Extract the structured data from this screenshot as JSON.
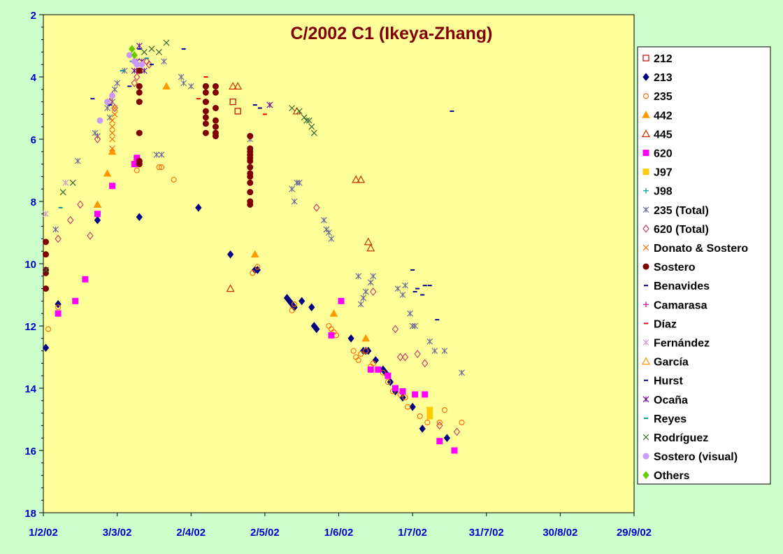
{
  "chart_data": {
    "type": "scatter",
    "title": "C/2002 C1 (Ikeya-Zhang)",
    "xlabel": "",
    "ylabel": "",
    "x_tick_labels": [
      "1/2/02",
      "3/3/02",
      "2/4/02",
      "2/5/02",
      "1/6/02",
      "1/7/02",
      "31/7/02",
      "30/8/02",
      "29/9/02"
    ],
    "x_tick_values": [
      0,
      30,
      60,
      90,
      120,
      150,
      180,
      210,
      240
    ],
    "xlim": [
      0,
      240
    ],
    "ylim": [
      18,
      2
    ],
    "y_inverted": true,
    "y_ticks": [
      2,
      4,
      6,
      8,
      10,
      12,
      14,
      16,
      18
    ],
    "legend_position": "right",
    "grid": false,
    "plot_background": "#ffff99",
    "series": [
      {
        "name": "212",
        "marker": "square-open",
        "color": "#cc0000",
        "x": [
          77,
          79
        ],
        "y": [
          4.8,
          5.1
        ]
      },
      {
        "name": "213",
        "marker": "diamond",
        "color": "#000080",
        "x": [
          1,
          6,
          22,
          39,
          63,
          76,
          86,
          87,
          99,
          100,
          101,
          102,
          105,
          109,
          110,
          111,
          125,
          130,
          131,
          132,
          135,
          138,
          139,
          141,
          143,
          146,
          150,
          154,
          164
        ],
        "y": [
          12.7,
          11.3,
          8.6,
          8.5,
          8.2,
          9.7,
          10.2,
          10.2,
          11.1,
          11.2,
          11.3,
          11.4,
          11.2,
          11.4,
          12.0,
          12.1,
          12.4,
          12.8,
          12.8,
          12.8,
          13.1,
          13.4,
          13.5,
          13.8,
          14.1,
          14.3,
          14.6,
          15.3,
          15.6
        ]
      },
      {
        "name": "235",
        "marker": "circle-open",
        "color": "#ff6600",
        "x": [
          2,
          6,
          38,
          47,
          48,
          53,
          85,
          87,
          101,
          102,
          116,
          117,
          118,
          119,
          126,
          127,
          128,
          129,
          131,
          133,
          134,
          136,
          138,
          140,
          142,
          145,
          147,
          148,
          153,
          156,
          161,
          163,
          170
        ],
        "y": [
          12.1,
          11.4,
          7.0,
          6.9,
          6.9,
          7.3,
          10.3,
          10.1,
          11.5,
          11.3,
          12.0,
          12.1,
          12.2,
          12.3,
          12.8,
          13.0,
          13.1,
          12.9,
          12.8,
          13.3,
          13.2,
          13.4,
          13.5,
          13.8,
          14.1,
          14.2,
          14.3,
          14.6,
          14.9,
          15.1,
          15.1,
          14.7,
          15.1
        ]
      },
      {
        "name": "442",
        "marker": "triangle",
        "color": "#ff9900",
        "x": [
          22,
          26,
          28,
          50,
          86,
          118,
          131
        ],
        "y": [
          8.1,
          7.1,
          6.4,
          4.3,
          9.7,
          11.6,
          12.4
        ]
      },
      {
        "name": "445",
        "marker": "triangle-open",
        "color": "#cc3300",
        "x": [
          76,
          77,
          79,
          103,
          127,
          129,
          132,
          133
        ],
        "y": [
          10.8,
          4.3,
          4.3,
          5.1,
          7.3,
          7.3,
          9.3,
          9.5
        ]
      },
      {
        "name": "620",
        "marker": "square",
        "color": "#ff00ff",
        "x": [
          6,
          13,
          17,
          22,
          28,
          37,
          38,
          117,
          121,
          133,
          136,
          140,
          143,
          146,
          151,
          155,
          161,
          167
        ],
        "y": [
          11.6,
          11.2,
          10.5,
          8.4,
          7.5,
          6.8,
          6.6,
          12.3,
          11.2,
          13.4,
          13.4,
          13.6,
          14.0,
          14.1,
          14.2,
          14.2,
          15.7,
          16.0
        ]
      },
      {
        "name": "J97",
        "marker": "square",
        "color": "#ffcc00",
        "x": [
          157,
          157
        ],
        "y": [
          14.7,
          14.9
        ]
      },
      {
        "name": "J98",
        "marker": "plus",
        "color": "#009999",
        "x": [],
        "y": []
      },
      {
        "name": "235 (Total)",
        "marker": "star",
        "color": "#666699",
        "x": [
          5,
          14,
          21,
          22,
          26,
          27,
          28,
          29,
          30,
          33,
          46,
          48,
          49,
          56,
          57,
          60,
          84,
          101,
          102,
          103,
          104,
          114,
          115,
          116,
          117,
          128,
          129,
          130,
          131,
          133,
          134,
          144,
          146,
          147,
          149,
          150,
          151,
          157,
          159,
          163,
          170
        ],
        "y": [
          8.9,
          6.7,
          5.8,
          5.9,
          5.0,
          5.3,
          4.8,
          4.4,
          4.2,
          3.8,
          6.5,
          6.5,
          3.5,
          4.0,
          4.2,
          4.3,
          6.0,
          7.6,
          8.0,
          7.4,
          7.4,
          8.6,
          8.9,
          9.0,
          9.2,
          10.4,
          11.3,
          11.1,
          10.9,
          10.6,
          10.4,
          10.8,
          11.0,
          10.7,
          11.6,
          12.0,
          12.0,
          12.5,
          12.8,
          12.8,
          13.5
        ]
      },
      {
        "name": "620 (Total)",
        "marker": "diamond-open",
        "color": "#cc3366",
        "x": [
          6,
          11,
          15,
          19,
          22,
          27,
          28,
          29,
          37,
          38,
          42,
          43,
          111,
          134,
          143,
          145,
          147,
          152,
          155,
          161,
          168
        ],
        "y": [
          9.2,
          8.6,
          8.1,
          9.1,
          6.0,
          4.8,
          4.6,
          5.0,
          4.2,
          4.0,
          3.5,
          3.6,
          8.2,
          10.9,
          12.1,
          13.0,
          13.0,
          12.9,
          13.2,
          15.2,
          15.4
        ]
      },
      {
        "name": "Donato & Sostero",
        "marker": "x",
        "color": "#ff6600",
        "x": [
          28,
          28,
          28,
          28,
          28,
          29,
          29
        ],
        "y": [
          6.3,
          6.0,
          5.8,
          5.6,
          5.4,
          5.2,
          5.0
        ]
      },
      {
        "name": "Sostero",
        "marker": "circle",
        "color": "#800000",
        "x": [
          1,
          1,
          1,
          1,
          1,
          39,
          39,
          39,
          39,
          39,
          39,
          39,
          66,
          66,
          66,
          66,
          66,
          66,
          66,
          66,
          66,
          70,
          70,
          70,
          70,
          70,
          70,
          70,
          84,
          84,
          84,
          84,
          84,
          84,
          84,
          84,
          84,
          84,
          84,
          84,
          84
        ],
        "y": [
          9.3,
          9.7,
          10.2,
          10.3,
          10.8,
          3.8,
          4.3,
          4.5,
          4.8,
          5.8,
          6.7,
          6.8,
          4.3,
          4.5,
          4.8,
          5.1,
          5.3,
          5.5,
          5.8,
          4.3,
          4.8,
          4.3,
          4.5,
          5.0,
          5.4,
          5.6,
          5.8,
          5.9,
          6.4,
          7.1,
          5.9,
          6.3,
          6.5,
          6.6,
          6.7,
          6.9,
          7.2,
          7.4,
          7.7,
          8.0,
          8.1
        ]
      },
      {
        "name": "Benavides",
        "marker": "dash",
        "color": "#000099",
        "x": [
          27,
          44,
          57,
          86,
          88,
          150,
          151,
          152,
          154,
          155,
          157,
          160,
          166
        ],
        "y": [
          4.9,
          3.6,
          3.1,
          4.9,
          5.0,
          10.2,
          10.9,
          10.8,
          11.0,
          10.7,
          10.7,
          11.8,
          5.1
        ]
      },
      {
        "name": "Camarasa",
        "marker": "plus",
        "color": "#cc0099",
        "x": [],
        "y": []
      },
      {
        "name": "Díaz",
        "marker": "dash",
        "color": "#ff0000",
        "x": [
          63,
          66,
          90
        ],
        "y": [
          4.7,
          4.0,
          5.2
        ]
      },
      {
        "name": "Fernández",
        "marker": "star",
        "color": "#cc99cc",
        "x": [
          1,
          9
        ],
        "y": [
          8.4,
          7.4
        ]
      },
      {
        "name": "García",
        "marker": "triangle-open",
        "color": "#ff9900",
        "x": [],
        "y": []
      },
      {
        "name": "Hurst",
        "marker": "dash",
        "color": "#000099",
        "x": [
          20,
          35,
          39
        ],
        "y": [
          4.7,
          4.3,
          3.1
        ]
      },
      {
        "name": "Ocaña",
        "marker": "star",
        "color": "#660099",
        "x": [
          37,
          38,
          39,
          40,
          41,
          92
        ],
        "y": [
          3.8,
          3.5,
          3.0,
          3.5,
          3.8,
          4.9
        ]
      },
      {
        "name": "Reyes",
        "marker": "dash",
        "color": "#009999",
        "x": [
          7,
          32,
          36,
          42
        ],
        "y": [
          8.2,
          3.8,
          3.5,
          3.4
        ]
      },
      {
        "name": "Rodríguez",
        "marker": "x",
        "color": "#336633",
        "x": [
          1,
          8,
          12,
          41,
          44,
          47,
          50,
          101,
          104,
          106,
          107,
          108,
          109,
          110
        ],
        "y": [
          10.2,
          7.7,
          7.4,
          3.2,
          3.1,
          3.2,
          2.9,
          5.0,
          5.1,
          5.3,
          5.4,
          5.4,
          5.6,
          5.8
        ]
      },
      {
        "name": "Sostero (visual)",
        "marker": "circle",
        "color": "#cc99ff",
        "x": [
          23,
          26,
          28,
          35,
          37,
          38,
          40
        ],
        "y": [
          5.4,
          4.8,
          4.6,
          3.3,
          3.5,
          3.6,
          3.6
        ]
      },
      {
        "name": "Others",
        "marker": "diamond",
        "color": "#66cc00",
        "x": [
          36,
          37
        ],
        "y": [
          3.1,
          3.3
        ]
      }
    ]
  }
}
